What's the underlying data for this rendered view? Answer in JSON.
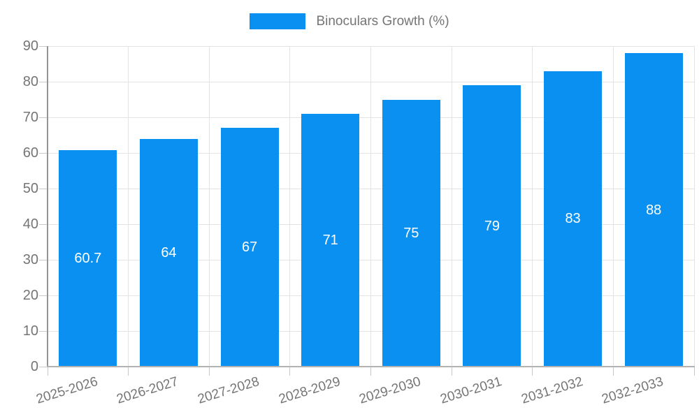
{
  "legend": {
    "label": "Binoculars Growth (%)"
  },
  "colors": {
    "bar": "#0a90f0",
    "grid": "#e3e3e3",
    "axis_y": "#949494",
    "axis_x": "#b3b3b3",
    "tick": "#c9c9c9",
    "text": "#757575",
    "data_label": "#ffffff",
    "background": "#ffffff"
  },
  "chart_data": {
    "type": "bar",
    "title": "",
    "legend_entries": [
      "Binoculars Growth (%)"
    ],
    "legend_position": "top",
    "categories": [
      "2025-2026",
      "2026-2027",
      "2027-2028",
      "2028-2029",
      "2029-2030",
      "2030-2031",
      "2031-2032",
      "2032-2033"
    ],
    "values": [
      60.7,
      64,
      67,
      71,
      75,
      79,
      83,
      88
    ],
    "labels": [
      "60.7",
      "64",
      "67",
      "71",
      "75",
      "79",
      "83",
      "88"
    ],
    "xlabel": "",
    "ylabel": "",
    "ylim": [
      0,
      90
    ],
    "ytick_step": 10,
    "yticks": [
      "0",
      "10",
      "20",
      "30",
      "40",
      "50",
      "60",
      "70",
      "80",
      "90"
    ],
    "grid": true
  }
}
